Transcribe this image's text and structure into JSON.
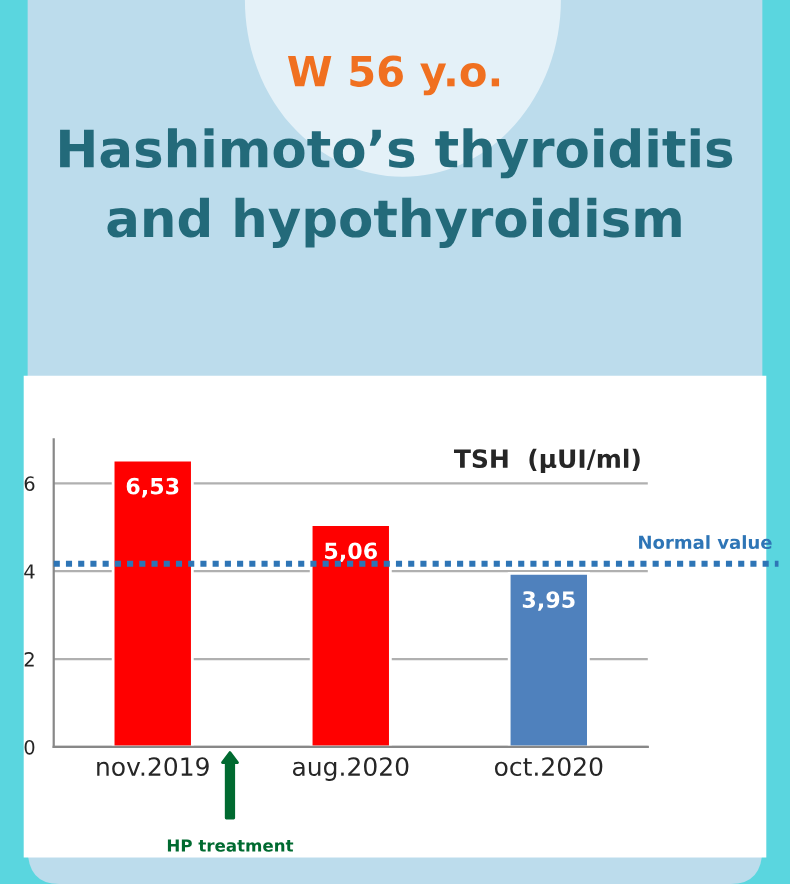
{
  "chart_data": {
    "type": "bar",
    "title": "W 56 y.o.",
    "subtitle": "Hashimoto’s thyroiditis and hypothyroidism",
    "ylabel": "TSH  (µUI/ml)",
    "categories": [
      "nov.2019",
      "aug.2020",
      "oct.2020"
    ],
    "values": [
      6.53,
      5.06,
      3.95
    ],
    "colors": [
      "#ff0000",
      "#ff0000",
      "#4f81bd"
    ],
    "value_labels": [
      "6,53",
      "5,06",
      "3,95"
    ],
    "ylim": [
      0,
      7
    ],
    "yticks": [
      0,
      2,
      4,
      6
    ],
    "grid": "y",
    "ref_lines": [
      {
        "axis": "y",
        "value": 4.17,
        "label": "Normal value",
        "color": "#2e75b6",
        "line_style": "dotted"
      }
    ],
    "annotations": [
      "HP treatment"
    ]
  }
}
